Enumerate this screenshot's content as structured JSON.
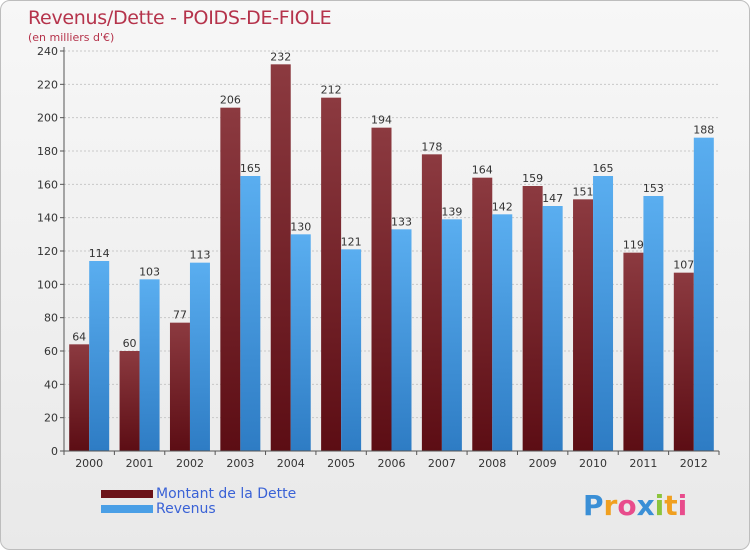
{
  "title": "Revenus/Dette - POIDS-DE-FIOLE",
  "subtitle": "(en milliers d'€)",
  "colors": {
    "dette_dark": "#5c0d14",
    "dette_light": "#8c3a40",
    "revenus_dark": "#2e7cc4",
    "revenus_light": "#5aaef0",
    "title": "#b5334b",
    "legend_text": "#3a62d6"
  },
  "legend": [
    {
      "label": "Montant de la Dette",
      "color": "#6b1218"
    },
    {
      "label": "Revenus",
      "color": "#4a9fe6"
    }
  ],
  "logo": {
    "letters": [
      "P",
      "r",
      "o",
      "x",
      "i",
      "t",
      "i"
    ],
    "colors": [
      "#3a8fd6",
      "#f0a020",
      "#e84c8c",
      "#3a8fd6",
      "#8cc43c",
      "#f0a020",
      "#e84c8c"
    ]
  },
  "chart_data": {
    "type": "bar",
    "categories": [
      "2000",
      "2001",
      "2002",
      "2003",
      "2004",
      "2005",
      "2006",
      "2007",
      "2008",
      "2009",
      "2010",
      "2011",
      "2012"
    ],
    "series": [
      {
        "name": "Montant de la Dette",
        "values": [
          64,
          60,
          77,
          206,
          232,
          212,
          194,
          178,
          164,
          159,
          151,
          119,
          107
        ]
      },
      {
        "name": "Revenus",
        "values": [
          114,
          103,
          113,
          165,
          130,
          121,
          133,
          139,
          142,
          147,
          165,
          153,
          188
        ]
      }
    ],
    "title": "Revenus/Dette - POIDS-DE-FIOLE",
    "ylabel": "(en milliers d'€)",
    "ylim": [
      0,
      240
    ],
    "yticks": [
      0,
      20,
      40,
      60,
      80,
      100,
      120,
      140,
      160,
      180,
      200,
      220,
      240
    ],
    "grid": true,
    "legend_position": "bottom"
  }
}
